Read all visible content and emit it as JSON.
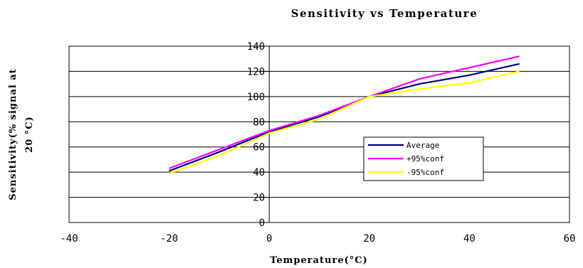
{
  "chart_data": {
    "type": "line",
    "title": "Sensitivity   vs Temperature",
    "xlabel": "Temperature(°C)",
    "ylabel_lines": [
      "Sensitivity(% signal at",
      "20 °C)"
    ],
    "xlim": [
      -40,
      60
    ],
    "ylim": [
      0,
      140
    ],
    "xticks": [
      -40,
      -20,
      0,
      20,
      40,
      60
    ],
    "yticks": [
      0,
      20,
      40,
      60,
      80,
      100,
      120,
      140
    ],
    "xtick_labels": [
      "-40",
      "-20",
      "0",
      "20",
      "40",
      "60"
    ],
    "ytick_labels": [
      "0",
      "20",
      "40",
      "60",
      "80",
      "100",
      "120",
      "140"
    ],
    "grid": "horizontal",
    "legend_position": "center-right",
    "x": [
      -20,
      -10,
      0,
      10,
      20,
      30,
      40,
      50
    ],
    "series": [
      {
        "name": "Average",
        "color": "#000080",
        "values": [
          41,
          56,
          72,
          84,
          100,
          110,
          117,
          126
        ]
      },
      {
        "name": "+95%conf",
        "color": "#ff00ff",
        "values": [
          43,
          58,
          73,
          85,
          100,
          114,
          123,
          132
        ]
      },
      {
        "name": "-95%conf",
        "color": "#ffff00",
        "values": [
          39,
          53,
          71,
          82,
          100,
          106,
          111,
          120
        ]
      }
    ]
  }
}
